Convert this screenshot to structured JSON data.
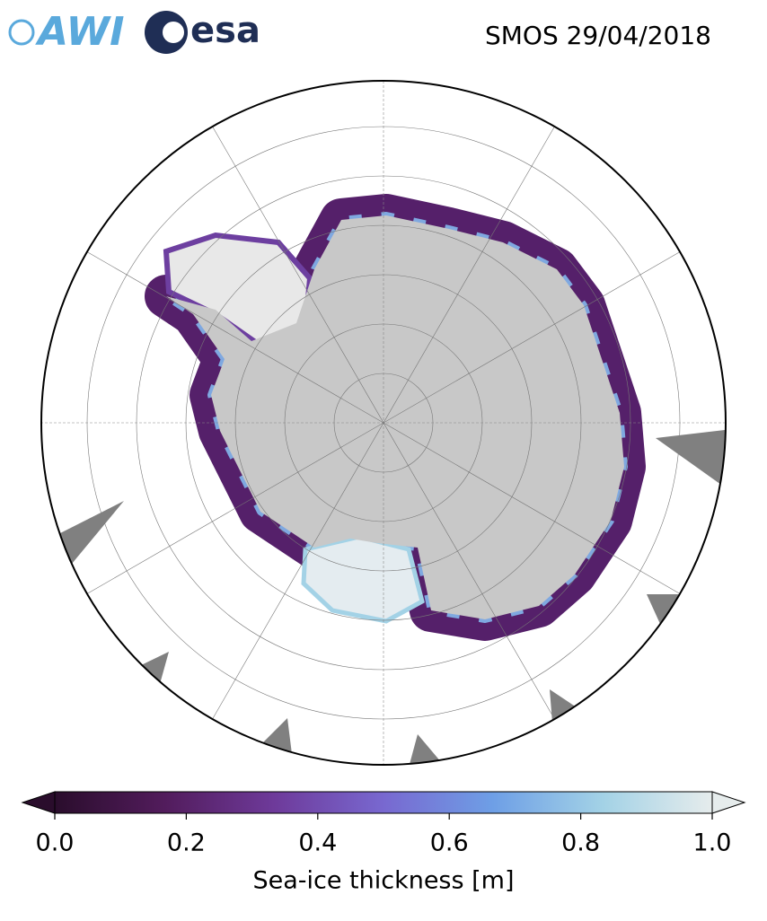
{
  "header": {
    "logos": [
      "AWI",
      "esa"
    ],
    "title": "SMOS 29/04/2018"
  },
  "chart_data": {
    "type": "colorbar",
    "label": "Sea-ice thickness [m]",
    "lim": [
      0,
      1
    ],
    "ticks": [
      {
        "value": 0,
        "label": "0.0"
      },
      {
        "value": 0.2,
        "label": "0.2"
      },
      {
        "value": 0.4,
        "label": "0.4"
      },
      {
        "value": 0.6,
        "label": "0.6"
      },
      {
        "value": 0.8,
        "label": "0.8"
      },
      {
        "value": 1,
        "label": "1.0"
      }
    ],
    "colormap": [
      "#2a0d2c",
      "#521c5c",
      "#6e3a9a",
      "#7868d0",
      "#6e9fe6",
      "#a3d2e6",
      "#e6ecec"
    ],
    "extend": "both"
  }
}
